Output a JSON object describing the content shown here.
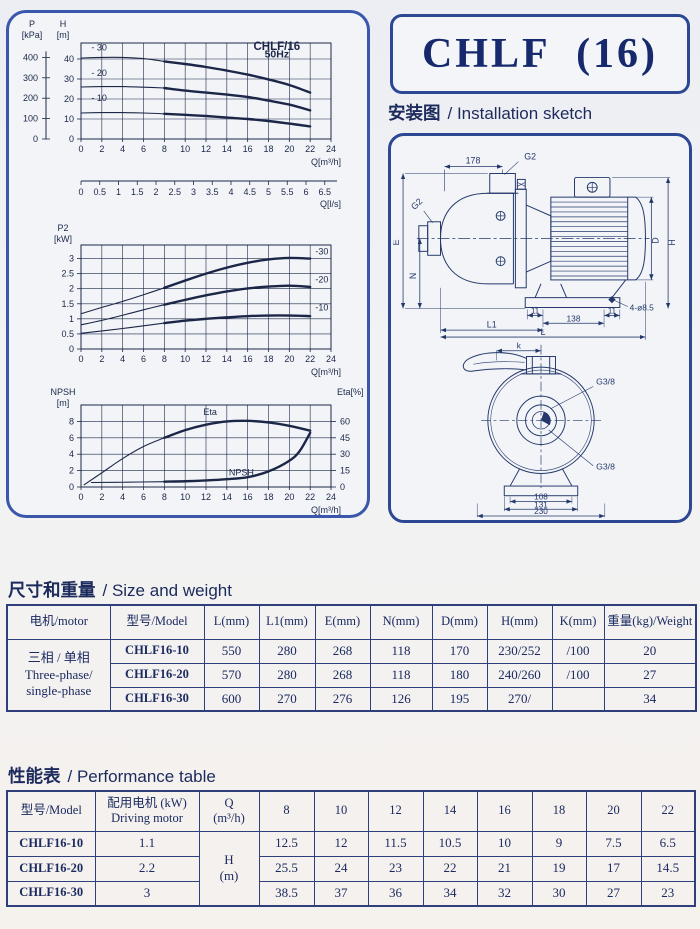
{
  "colors": {
    "accent_border": "#3a57ab",
    "dark_border": "#2c4794",
    "ink": "#1c2a5c",
    "chart_ink": "#1c2748",
    "table_line": "#2f3f7c"
  },
  "title": "CHLF  (16)",
  "install": {
    "heading_cn": "安装图",
    "heading_en": "/ Installation sketch"
  },
  "sketch": {
    "side": {
      "d178": "178",
      "g2_top": "G2",
      "g2_left": "G2",
      "e": "E",
      "n": "N",
      "d": "D",
      "h": "H",
      "d11a": "11",
      "d138": "138",
      "d11b": "11",
      "holes": "4-ø8.5",
      "l1": "L1",
      "l": "L"
    },
    "front": {
      "k": "k",
      "g38_top": "G3/8",
      "g38_bottom": "G3/8",
      "d108": "108",
      "d131": "131",
      "d230": "230"
    }
  },
  "size_section": {
    "heading_cn": "尺寸和重量",
    "heading_en": "/ Size and weight",
    "headers": [
      "电机/motor",
      "型号/Model",
      "L(mm)",
      "L1(mm)",
      "E(mm)",
      "N(mm)",
      "D(mm)",
      "H(mm)",
      "K(mm)",
      "重量(kg)/Weight"
    ],
    "motor_cell": "三相 / 单相\nThree-phase/\nsingle-phase",
    "rows": [
      [
        "CHLF16-10",
        "550",
        "280",
        "268",
        "118",
        "170",
        "230/252",
        "/100",
        "20"
      ],
      [
        "CHLF16-20",
        "570",
        "280",
        "268",
        "118",
        "180",
        "240/260",
        "/100",
        "27"
      ],
      [
        "CHLF16-30",
        "600",
        "270",
        "276",
        "126",
        "195",
        "270/",
        "",
        "34"
      ]
    ]
  },
  "perf_section": {
    "heading_cn": "性能表",
    "heading_en": "/ Performance table",
    "headers": [
      "型号/Model",
      "配用电机 (kW)\nDriving motor",
      "Q\n(m³/h)",
      "8",
      "10",
      "12",
      "14",
      "16",
      "18",
      "20",
      "22"
    ],
    "unit_cell": "H\n(m)",
    "rows": [
      [
        "CHLF16-10",
        "1.1",
        "12.5",
        "12",
        "11.5",
        "10.5",
        "10",
        "9",
        "7.5",
        "6.5"
      ],
      [
        "CHLF16-20",
        "2.2",
        "25.5",
        "24",
        "23",
        "22",
        "21",
        "19",
        "17",
        "14.5"
      ],
      [
        "CHLF16-30",
        "3",
        "38.5",
        "37",
        "36",
        "34",
        "32",
        "30",
        "27",
        "23"
      ]
    ]
  },
  "chart_data": [
    {
      "type": "line",
      "name": "head-flow-curve",
      "title": "CHLF/16",
      "subtitle": "50Hz",
      "x": {
        "min": 0,
        "max": 24,
        "ticks": [
          0,
          2,
          4,
          6,
          8,
          10,
          12,
          14,
          16,
          18,
          20,
          22,
          24
        ],
        "label": "Q[m³/h]"
      },
      "x2": {
        "ticks": [
          0,
          0.5,
          1,
          1.5,
          2,
          2.5,
          3,
          3.5,
          4,
          4.5,
          5,
          5.5,
          6,
          6.5
        ],
        "label": "Q[l/s]",
        "factor": 3.6
      },
      "y": {
        "min": 0,
        "max": 48,
        "gridlines": [
          10,
          20,
          30,
          40
        ],
        "ticks": [
          0,
          10,
          20,
          30,
          40
        ],
        "header": [
          "H",
          "[m]"
        ],
        "unit": "m"
      },
      "y_aux": {
        "ticks": [
          0,
          100,
          200,
          300,
          400
        ],
        "header": [
          "P",
          "[kPa]"
        ],
        "factor": 0.102,
        "unit": "kPa"
      },
      "series": [
        {
          "name": "-30",
          "points": [
            [
              0,
              40.5
            ],
            [
              2,
              40.8
            ],
            [
              4,
              40.8
            ],
            [
              6,
              40.2
            ],
            [
              8,
              38.8
            ],
            [
              10,
              37.5
            ],
            [
              12,
              36.0
            ],
            [
              14,
              34.2
            ],
            [
              16,
              32.2
            ],
            [
              18,
              29.8
            ],
            [
              20,
              27.0
            ],
            [
              22,
              23.2
            ]
          ],
          "thick_from": 8
        },
        {
          "name": "-20",
          "points": [
            [
              0,
              26.0
            ],
            [
              2,
              26.2
            ],
            [
              4,
              26.2
            ],
            [
              6,
              25.9
            ],
            [
              8,
              25.5
            ],
            [
              10,
              24.2
            ],
            [
              12,
              23.2
            ],
            [
              14,
              22.2
            ],
            [
              16,
              21.0
            ],
            [
              18,
              19.2
            ],
            [
              20,
              17.2
            ],
            [
              22,
              14.3
            ]
          ],
          "thick_from": 8
        },
        {
          "name": "-10",
          "points": [
            [
              0,
              13.0
            ],
            [
              2,
              13.2
            ],
            [
              4,
              13.2
            ],
            [
              6,
              13.0
            ],
            [
              8,
              12.6
            ],
            [
              10,
              12.1
            ],
            [
              12,
              11.5
            ],
            [
              14,
              10.7
            ],
            [
              16,
              10.0
            ],
            [
              18,
              9.0
            ],
            [
              20,
              7.7
            ],
            [
              22,
              6.3
            ]
          ],
          "thick_from": 8
        }
      ],
      "annotations": [
        {
          "text": "CHLF/16",
          "x": 18.8,
          "y": 44.4,
          "bold": true,
          "size": 11.5,
          "serif": true
        },
        {
          "text": "50Hz",
          "x": 18.8,
          "y": 40.8,
          "bold": true,
          "size": 10.5,
          "serif": true
        },
        {
          "text": "- 30",
          "x": 1.0,
          "y": 44.2,
          "anchor": "start"
        },
        {
          "text": "- 20",
          "x": 1.0,
          "y": 31.5,
          "anchor": "start"
        },
        {
          "text": "- 10",
          "x": 1.0,
          "y": 19.0,
          "anchor": "start"
        }
      ]
    },
    {
      "type": "line",
      "name": "power-flow-curve",
      "x": {
        "min": 0,
        "max": 24,
        "ticks": [
          0,
          2,
          4,
          6,
          8,
          10,
          12,
          14,
          16,
          18,
          20,
          22,
          24
        ],
        "label": "Q[m³/h]"
      },
      "y": {
        "min": 0,
        "max": 3.45,
        "gridlines": [
          0.5,
          1,
          1.5,
          2,
          2.5,
          3
        ],
        "ticks": [
          0,
          0.5,
          1,
          1.5,
          2,
          2.5,
          3
        ],
        "header": [
          "P2",
          "[kW]"
        ],
        "unit": "kW"
      },
      "series": [
        {
          "name": "-30",
          "points": [
            [
              0,
              1.17
            ],
            [
              2,
              1.38
            ],
            [
              4,
              1.58
            ],
            [
              6,
              1.8
            ],
            [
              8,
              2.03
            ],
            [
              10,
              2.27
            ],
            [
              12,
              2.5
            ],
            [
              14,
              2.7
            ],
            [
              16,
              2.86
            ],
            [
              18,
              2.97
            ],
            [
              20,
              3.02
            ],
            [
              22,
              3.0
            ]
          ],
          "thick_from": 8
        },
        {
          "name": "-20",
          "points": [
            [
              0,
              0.8
            ],
            [
              2,
              0.95
            ],
            [
              4,
              1.12
            ],
            [
              6,
              1.3
            ],
            [
              8,
              1.47
            ],
            [
              10,
              1.63
            ],
            [
              12,
              1.78
            ],
            [
              14,
              1.91
            ],
            [
              16,
              2.01
            ],
            [
              18,
              2.07
            ],
            [
              20,
              2.1
            ],
            [
              22,
              2.06
            ]
          ],
          "thick_from": 8
        },
        {
          "name": "-10",
          "points": [
            [
              0,
              0.52
            ],
            [
              2,
              0.6
            ],
            [
              4,
              0.68
            ],
            [
              6,
              0.77
            ],
            [
              8,
              0.86
            ],
            [
              10,
              0.94
            ],
            [
              12,
              1.0
            ],
            [
              14,
              1.05
            ],
            [
              16,
              1.09
            ],
            [
              18,
              1.11
            ],
            [
              20,
              1.11
            ],
            [
              22,
              1.09
            ]
          ],
          "thick_from": 8
        }
      ],
      "annotations": [
        {
          "text": "-30",
          "x": 22.5,
          "y": 3.14,
          "anchor": "start"
        },
        {
          "text": "-20",
          "x": 22.5,
          "y": 2.2,
          "anchor": "start"
        },
        {
          "text": "-10",
          "x": 22.5,
          "y": 1.28,
          "anchor": "start"
        }
      ]
    },
    {
      "type": "line",
      "name": "npsh-eta-curve",
      "x": {
        "min": 0,
        "max": 24,
        "ticks": [
          0,
          2,
          4,
          6,
          8,
          10,
          12,
          14,
          16,
          18,
          20,
          22,
          24
        ],
        "label": "Q[m³/h]"
      },
      "y": {
        "min": 0,
        "max": 10,
        "gridlines": [
          2,
          4,
          6,
          8
        ],
        "ticks": [
          0,
          2,
          4,
          6,
          8
        ],
        "header": [
          "NPSH",
          "[m]"
        ],
        "unit": "m"
      },
      "y_right": {
        "ticks": [
          0,
          15,
          30,
          45,
          60
        ],
        "header": "Eta[%]",
        "factor": 0.133333,
        "unit": "%"
      },
      "series": [
        {
          "name": "Eta",
          "unit": "%",
          "y_scale": 0.133333,
          "points": [
            [
              0.3,
              2
            ],
            [
              2,
              13
            ],
            [
              4,
              26
            ],
            [
              6,
              37
            ],
            [
              8,
              45
            ],
            [
              10,
              52
            ],
            [
              12,
              57
            ],
            [
              14,
              60
            ],
            [
              16,
              60.5
            ],
            [
              18,
              59
            ],
            [
              20,
              56
            ],
            [
              22,
              51.5
            ]
          ],
          "thick_from": 8
        },
        {
          "name": "NPSH",
          "unit": "m",
          "points": [
            [
              1,
              0.55
            ],
            [
              4,
              0.58
            ],
            [
              8,
              0.65
            ],
            [
              10,
              0.7
            ],
            [
              12,
              0.8
            ],
            [
              14,
              0.95
            ],
            [
              16,
              1.2
            ],
            [
              18,
              1.9
            ],
            [
              20,
              3.2
            ],
            [
              21,
              4.4
            ],
            [
              22,
              6.6
            ]
          ],
          "thick_from": 8
        }
      ],
      "annotations": [
        {
          "text": "Eta",
          "x": 12.4,
          "y": 8.8,
          "anchor": "middle"
        },
        {
          "text": "NPSH",
          "x": 15.4,
          "y": 1.4,
          "anchor": "middle"
        }
      ]
    }
  ]
}
